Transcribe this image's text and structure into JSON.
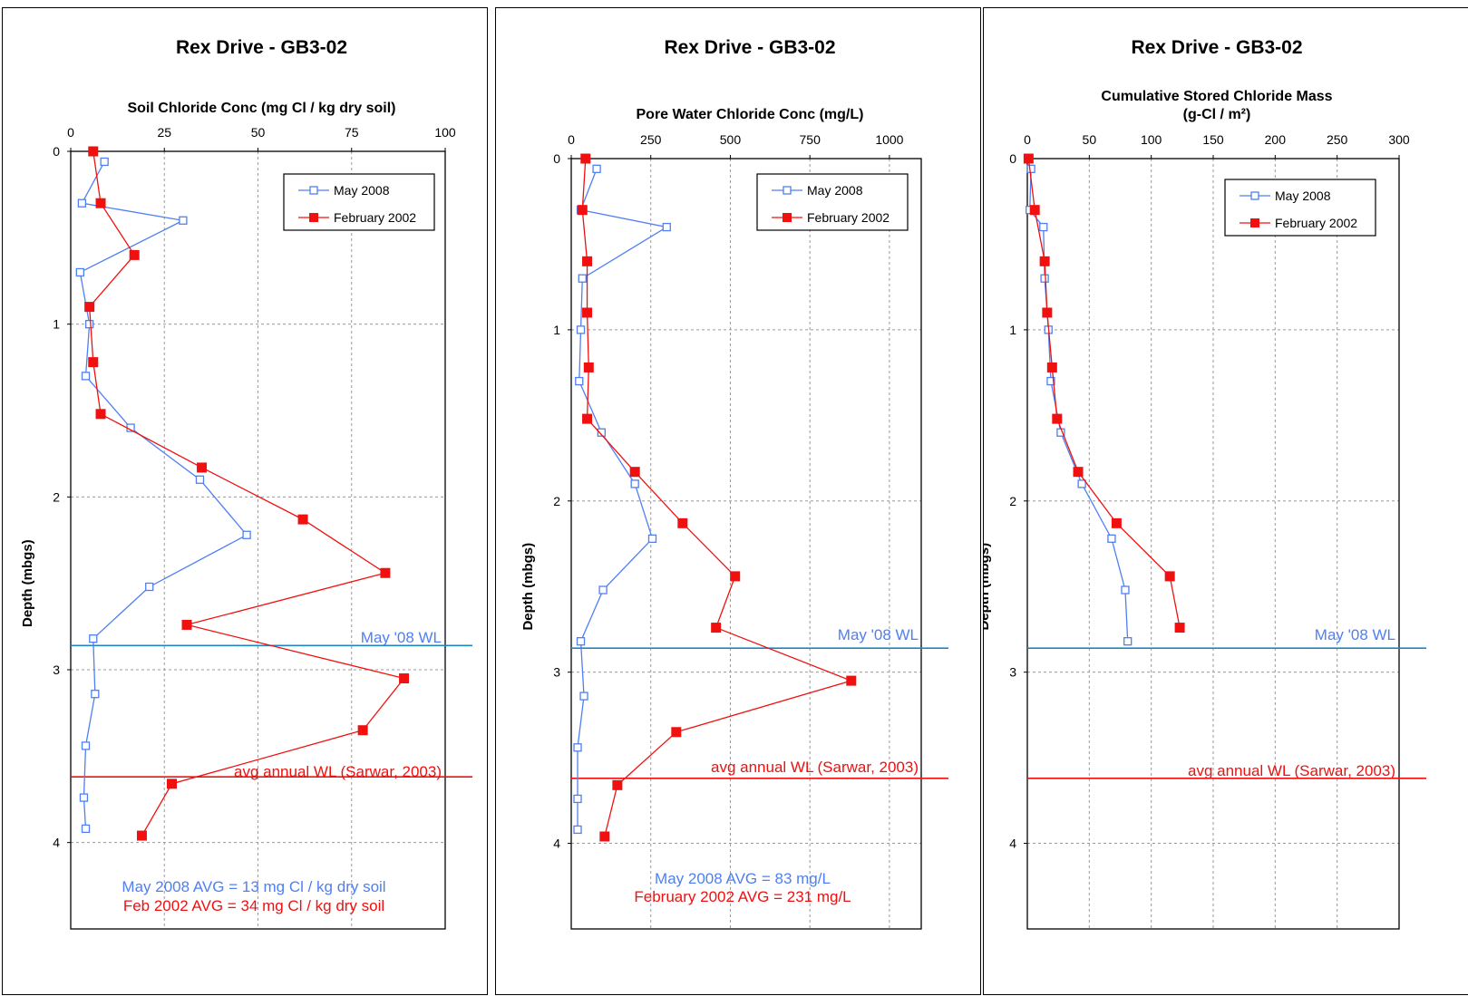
{
  "colors": {
    "may": "#4F7FF2",
    "feb": "#F01010",
    "wl": "#1F86C2",
    "avg_wl": "#F01010"
  },
  "chart_data": [
    {
      "type": "scatter",
      "title": "Rex Drive - GB3-02",
      "xlabel": "Soil Chloride Conc (mg Cl / kg dry soil)",
      "xlabel2": "",
      "ylabel": "Depth (mbgs)",
      "xlim": [
        0,
        100
      ],
      "ylim": [
        0,
        4.5
      ],
      "xticks": [
        "0",
        "25",
        "50",
        "75",
        "100"
      ],
      "yticks": [
        "0",
        "1",
        "2",
        "3",
        "4"
      ],
      "grid": true,
      "legend": "top-right",
      "series": [
        {
          "name": "May 2008",
          "marker": "hollow-square",
          "x": [
            9,
            3,
            30,
            2.5,
            5,
            4,
            16,
            34.5,
            47,
            21,
            6,
            6.5,
            4,
            3.5,
            4
          ],
          "y": [
            0.06,
            0.3,
            0.4,
            0.7,
            1.0,
            1.3,
            1.6,
            1.9,
            2.22,
            2.52,
            2.82,
            3.14,
            3.44,
            3.74,
            3.92
          ]
        },
        {
          "name": "February 2002",
          "marker": "filled-square",
          "x": [
            6,
            8,
            17,
            5,
            6,
            8,
            35,
            62,
            84,
            31,
            89,
            78,
            27,
            19
          ],
          "y": [
            0.0,
            0.3,
            0.6,
            0.9,
            1.22,
            1.52,
            1.83,
            2.13,
            2.44,
            2.74,
            3.05,
            3.35,
            3.66,
            3.96
          ]
        }
      ],
      "wl_may": {
        "y": 2.86,
        "label": "May '08 WL"
      },
      "wl_avg": {
        "y": 3.62,
        "label": "avg annual WL (Sarwar,  2003)"
      },
      "avg_may": "May 2008 AVG = 13 mg Cl / kg dry soil",
      "avg_feb": "Feb 2002 AVG = 34 mg Cl / kg dry soil"
    },
    {
      "type": "scatter",
      "title": "Rex Drive - GB3-02",
      "xlabel": "Pore Water  Chloride Conc (mg/L)",
      "xlabel2": "",
      "ylabel": "Depth (mbgs)",
      "xlim": [
        0,
        1100
      ],
      "ylim": [
        0,
        4.5
      ],
      "xticks": [
        "0",
        "250",
        "500",
        "750",
        "1000"
      ],
      "yticks": [
        "0",
        "1",
        "2",
        "3",
        "4"
      ],
      "grid": true,
      "legend": "top-right",
      "series": [
        {
          "name": "May 2008",
          "marker": "hollow-square",
          "x": [
            80,
            30,
            300,
            35,
            30,
            25,
            95,
            200,
            255,
            100,
            30,
            40,
            20,
            20,
            20
          ],
          "y": [
            0.06,
            0.3,
            0.4,
            0.7,
            1.0,
            1.3,
            1.6,
            1.9,
            2.22,
            2.52,
            2.82,
            3.14,
            3.44,
            3.74,
            3.92
          ]
        },
        {
          "name": "February 2002",
          "marker": "filled-square",
          "x": [
            45,
            35,
            50,
            50,
            55,
            50,
            200,
            350,
            515,
            455,
            880,
            330,
            145,
            105
          ],
          "y": [
            0.0,
            0.3,
            0.6,
            0.9,
            1.22,
            1.52,
            1.83,
            2.13,
            2.44,
            2.74,
            3.05,
            3.35,
            3.66,
            3.96
          ]
        }
      ],
      "wl_may": {
        "y": 2.86,
        "label": "May '08 WL"
      },
      "wl_avg": {
        "y": 3.62,
        "label": "avg annual WL (Sarwar,  2003)"
      },
      "avg_may": "May 2008 AVG = 83 mg/L",
      "avg_feb": "February 2002 AVG = 231 mg/L"
    },
    {
      "type": "scatter",
      "title": "Rex Drive - GB3-02",
      "xlabel": "Cumulative  Stored Chloride Mass",
      "xlabel2": "(g-Cl / m²)",
      "ylabel": "Depth (mbgs)",
      "xlim": [
        0,
        300
      ],
      "ylim": [
        0,
        4.5
      ],
      "xticks": [
        "0",
        "50",
        "100",
        "150",
        "200",
        "250",
        "300"
      ],
      "yticks": [
        "0",
        "1",
        "2",
        "3",
        "4"
      ],
      "grid": true,
      "legend": "top-right",
      "series": [
        {
          "name": "May 2008",
          "marker": "hollow-square",
          "x": [
            3,
            2,
            13,
            14,
            17,
            19,
            27,
            44,
            68,
            79,
            81
          ],
          "y": [
            0.06,
            0.3,
            0.4,
            0.7,
            1.0,
            1.3,
            1.6,
            1.9,
            2.22,
            2.52,
            2.82
          ]
        },
        {
          "name": "February 2002",
          "marker": "filled-square",
          "x": [
            1,
            6,
            14,
            16,
            20,
            24,
            41,
            72,
            115,
            123
          ],
          "y": [
            0.0,
            0.3,
            0.6,
            0.9,
            1.22,
            1.52,
            1.83,
            2.13,
            2.44,
            2.74
          ]
        }
      ],
      "wl_may": {
        "y": 2.86,
        "label": "May '08 WL"
      },
      "wl_avg": {
        "y": 3.62,
        "label": "avg annual WL (Sarwar,  2003)"
      },
      "avg_may": "",
      "avg_feb": ""
    }
  ]
}
